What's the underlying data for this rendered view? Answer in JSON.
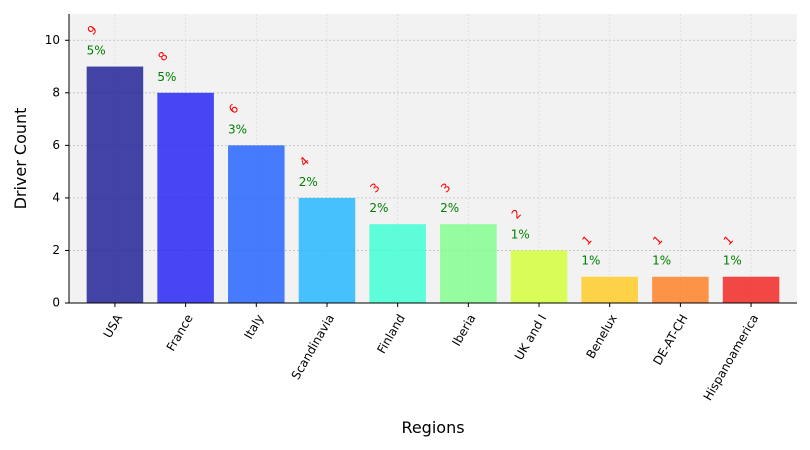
{
  "chart_data": {
    "type": "bar",
    "title": "",
    "xlabel": "Regions",
    "ylabel": "Driver Count",
    "ylim": [
      0,
      11
    ],
    "yticks": [
      0,
      2,
      4,
      6,
      8,
      10
    ],
    "grid": true,
    "legend": "none",
    "categories": [
      "USA",
      "France",
      "Italy",
      "Scandinavia",
      "Finland",
      "Iberia",
      "UK and I",
      "Benelux",
      "DE-AT-CH",
      "Hispanoamerica"
    ],
    "values": [
      9,
      8,
      6,
      4,
      3,
      3,
      2,
      1,
      1,
      1
    ],
    "count_labels": [
      "9",
      "8",
      "6",
      "4",
      "3",
      "3",
      "2",
      "1",
      "1",
      "1"
    ],
    "percent_labels": [
      "5%",
      "5%",
      "3%",
      "2%",
      "2%",
      "2%",
      "1%",
      "1%",
      "1%",
      "1%"
    ],
    "colors": [
      "#161692",
      "#1a1af5",
      "#1a5cff",
      "#1ab4ff",
      "#36ffd1",
      "#7dff8a",
      "#d0ff2e",
      "#ffc91a",
      "#ff7a1a",
      "#f01d1a"
    ],
    "bar_opacity": 0.8,
    "plot_background": "#f2f2f2"
  }
}
